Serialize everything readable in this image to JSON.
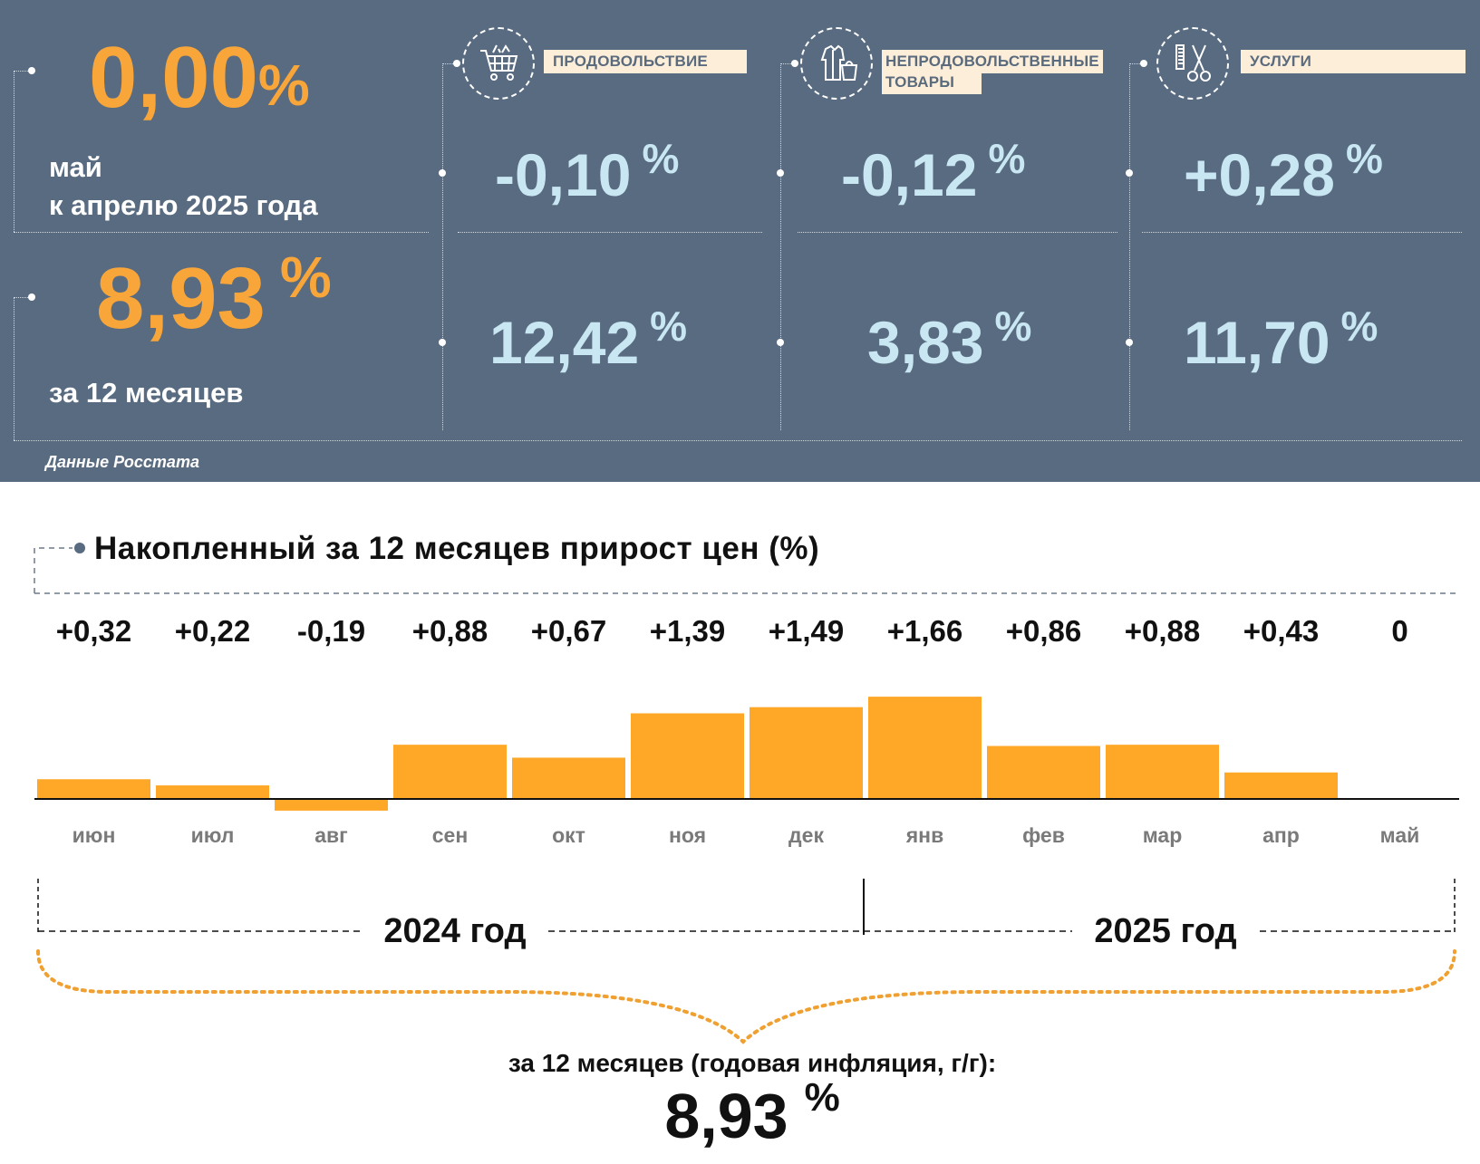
{
  "summary": {
    "month_value": "0,00",
    "percent_sign": "%",
    "month_label_line1": "май",
    "month_label_line2": "к апрелю 2025 года",
    "year_value": "8,93",
    "year_label": "за 12 месяцев",
    "source": "Данные Росстата"
  },
  "categories": [
    {
      "label": "ПРОДОВОЛЬСТВИЕ",
      "icon": "shopping-cart-icon",
      "month_value": "-0,10",
      "year_value": "12,42"
    },
    {
      "label_line1": "НЕПРОДОВОЛЬСТВЕННЫЕ",
      "label_line2": "ТОВАРЫ",
      "icon": "clothing-bag-icon",
      "month_value": "-0,12",
      "year_value": "3,83"
    },
    {
      "label": "УСЛУГИ",
      "icon": "comb-scissors-icon",
      "month_value": "+0,28",
      "year_value": "11,70"
    }
  ],
  "colors": {
    "panel_bg": "#586b80",
    "accent_orange": "#f8a53a",
    "bar_color": "#ffa726",
    "value_blue": "#c9e6f3",
    "label_bg": "#fdeed9"
  },
  "chart_data": {
    "type": "bar",
    "title": "Накопленный за 12 месяцев прирост цен (%)",
    "categories": [
      "июн",
      "июл",
      "авг",
      "сен",
      "окт",
      "ноя",
      "дек",
      "янв",
      "фев",
      "мар",
      "апр",
      "май"
    ],
    "values": [
      0.32,
      0.22,
      -0.19,
      0.88,
      0.67,
      1.39,
      1.49,
      1.66,
      0.86,
      0.88,
      0.43,
      0
    ],
    "value_labels": [
      "+0,32",
      "+0,22",
      "-0,19",
      "+0,88",
      "+0,67",
      "+1,39",
      "+1,49",
      "+1,66",
      "+0,86",
      "+0,88",
      "+0,43",
      "0"
    ],
    "ylim": [
      -0.2,
      1.8
    ],
    "grid": false,
    "legend": "none",
    "year_groups": [
      {
        "label": "2024 год",
        "start": 0,
        "end": 6
      },
      {
        "label": "2025 год",
        "start": 7,
        "end": 11
      }
    ],
    "total_label": "за 12 месяцев (годовая инфляция, г/г):",
    "total_value": "8,93",
    "total_unit": "%"
  }
}
